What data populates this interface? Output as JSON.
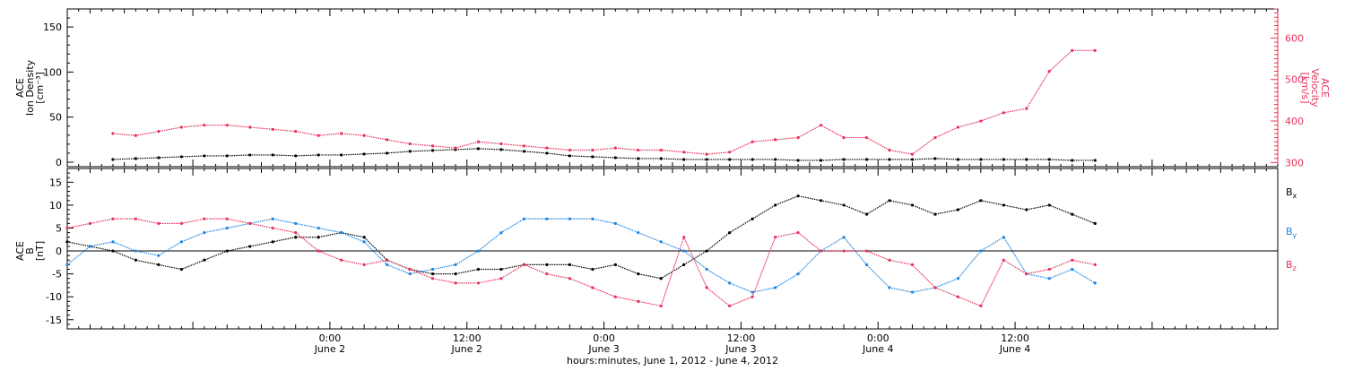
{
  "chart_data": [
    {
      "type": "scatter",
      "panel": "top",
      "ylabel_left": [
        "ACE",
        "Ion Density",
        "[cm⁻³]"
      ],
      "ylabel_right": [
        "ACE",
        "Velocity",
        "[km/s]"
      ],
      "ylim_left": [
        -5,
        170
      ],
      "ylim_right": [
        290,
        670
      ],
      "yticks_left": [
        0,
        50,
        100,
        150
      ],
      "yticks_right": [
        300,
        400,
        500,
        600
      ],
      "yticklabels_left": [
        "0",
        "50",
        "100",
        "150"
      ],
      "yticklabels_right": [
        "300",
        "400",
        "500",
        "600"
      ],
      "right_axis_color": "#e8315a",
      "series": [
        {
          "name": "Ion Density",
          "axis": "left",
          "color": "#000000",
          "x": [
            -19,
            -17,
            -15,
            -13,
            -11,
            -9,
            -7,
            -5,
            -3,
            -1,
            1,
            3,
            5,
            7,
            9,
            11,
            13,
            15,
            17,
            19,
            21,
            23,
            25,
            27,
            29,
            31,
            33,
            35,
            37,
            39,
            41,
            43,
            45,
            47,
            49,
            51,
            53,
            55,
            57,
            59,
            61,
            63,
            65,
            67
          ],
          "y": [
            3,
            4,
            5,
            6,
            7,
            7,
            8,
            8,
            7,
            8,
            8,
            9,
            10,
            12,
            13,
            14,
            15,
            14,
            12,
            10,
            7,
            6,
            5,
            4,
            4,
            3,
            3,
            3,
            3,
            3,
            2,
            2,
            3,
            3,
            3,
            3,
            4,
            3,
            3,
            3,
            3,
            3,
            2,
            2
          ]
        },
        {
          "name": "Velocity",
          "axis": "right",
          "color": "#e8315a",
          "x": [
            -19,
            -17,
            -15,
            -13,
            -11,
            -9,
            -7,
            -5,
            -3,
            -1,
            1,
            3,
            5,
            7,
            9,
            11,
            13,
            15,
            17,
            19,
            21,
            23,
            25,
            27,
            29,
            31,
            33,
            35,
            37,
            39,
            41,
            43,
            45,
            47,
            49,
            51,
            53,
            55,
            57,
            59,
            61,
            63,
            65,
            67
          ],
          "y": [
            370,
            365,
            375,
            385,
            390,
            390,
            385,
            380,
            375,
            365,
            370,
            365,
            355,
            345,
            340,
            335,
            350,
            345,
            340,
            335,
            330,
            330,
            335,
            330,
            330,
            325,
            320,
            325,
            350,
            355,
            360,
            390,
            360,
            360,
            330,
            320,
            360,
            385,
            400,
            420,
            430,
            520,
            570,
            570
          ]
        }
      ]
    },
    {
      "type": "scatter",
      "panel": "bottom",
      "ylabel": [
        "ACE",
        "B",
        "[nT]"
      ],
      "ylim": [
        -17,
        18
      ],
      "yticks": [
        -15,
        -10,
        -5,
        0,
        5,
        10,
        15
      ],
      "yticklabels": [
        "-15",
        "-10",
        "-5",
        "0",
        "5",
        "10",
        "15"
      ],
      "xlabel": "hours:minutes, June  1, 2012 - June  4, 2012",
      "xticks": [
        0,
        12,
        24,
        36,
        48,
        60
      ],
      "xticklabels": [
        [
          "0:00",
          "June 2"
        ],
        [
          "12:00",
          "June 2"
        ],
        [
          "0:00",
          "June 3"
        ],
        [
          "12:00",
          "June 3"
        ],
        [
          "0:00",
          "June 4"
        ],
        [
          "12:00",
          "June 4"
        ]
      ],
      "xlim": [
        -23,
        83
      ],
      "series": [
        {
          "name": "Bx",
          "color": "#000000",
          "x": [
            -23,
            -21,
            -19,
            -17,
            -15,
            -13,
            -11,
            -9,
            -7,
            -5,
            -3,
            -1,
            1,
            3,
            5,
            7,
            9,
            11,
            13,
            15,
            17,
            19,
            21,
            23,
            25,
            27,
            29,
            31,
            33,
            35,
            37,
            39,
            41,
            43,
            45,
            47,
            49,
            51,
            53,
            55,
            57,
            59,
            61,
            63,
            65,
            67
          ],
          "y": [
            2,
            1,
            0,
            -2,
            -3,
            -4,
            -2,
            0,
            1,
            2,
            3,
            3,
            4,
            3,
            -2,
            -4,
            -5,
            -5,
            -4,
            -4,
            -3,
            -3,
            -3,
            -4,
            -3,
            -5,
            -6,
            -3,
            0,
            4,
            7,
            10,
            12,
            11,
            10,
            8,
            11,
            10,
            8,
            9,
            11,
            10,
            9,
            10,
            8,
            6
          ]
        },
        {
          "name": "By",
          "color": "#1a85e3",
          "x": [
            -23,
            -21,
            -19,
            -17,
            -15,
            -13,
            -11,
            -9,
            -7,
            -5,
            -3,
            -1,
            1,
            3,
            5,
            7,
            9,
            11,
            13,
            15,
            17,
            19,
            21,
            23,
            25,
            27,
            29,
            31,
            33,
            35,
            37,
            39,
            41,
            43,
            45,
            47,
            49,
            51,
            53,
            55,
            57,
            59,
            61,
            63,
            65,
            67
          ],
          "y": [
            -3,
            1,
            2,
            0,
            -1,
            2,
            4,
            5,
            6,
            7,
            6,
            5,
            4,
            2,
            -3,
            -5,
            -4,
            -3,
            0,
            4,
            7,
            7,
            7,
            7,
            6,
            4,
            2,
            0,
            -4,
            -7,
            -9,
            -8,
            -5,
            0,
            3,
            -3,
            -8,
            -9,
            -8,
            -6,
            0,
            3,
            -5,
            -6,
            -4,
            -7
          ]
        },
        {
          "name": "Bz",
          "color": "#e8315a",
          "x": [
            -23,
            -21,
            -19,
            -17,
            -15,
            -13,
            -11,
            -9,
            -7,
            -5,
            -3,
            -1,
            1,
            3,
            5,
            7,
            9,
            11,
            13,
            15,
            17,
            19,
            21,
            23,
            25,
            27,
            29,
            31,
            33,
            35,
            37,
            39,
            41,
            43,
            45,
            47,
            49,
            51,
            53,
            55,
            57,
            59,
            61,
            63,
            65,
            67
          ],
          "y": [
            5,
            6,
            7,
            7,
            6,
            6,
            7,
            7,
            6,
            5,
            4,
            0,
            -2,
            -3,
            -2,
            -4,
            -6,
            -7,
            -7,
            -6,
            -3,
            -5,
            -6,
            -8,
            -10,
            -11,
            -12,
            3,
            -8,
            -12,
            -10,
            3,
            4,
            0,
            0,
            0,
            -2,
            -3,
            -8,
            -10,
            -12,
            -2,
            -5,
            -4,
            -2,
            -3
          ]
        }
      ],
      "legend": [
        "B",
        "B",
        "B"
      ],
      "legend_subscripts": [
        "x",
        "y",
        "z"
      ]
    }
  ]
}
